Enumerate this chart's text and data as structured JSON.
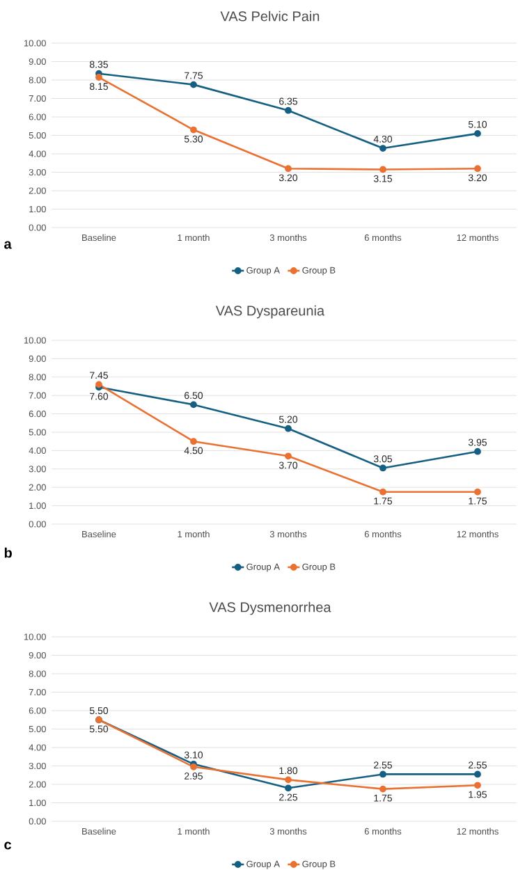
{
  "chart_data": [
    {
      "type": "line",
      "title": "VAS Pelvic Pain",
      "categories": [
        "Baseline",
        "1 month",
        "3 months",
        "6 months",
        "12 months"
      ],
      "series": [
        {
          "name": "Group A",
          "color": "#156082",
          "values": [
            8.35,
            7.75,
            6.35,
            4.3,
            5.1
          ],
          "value_labels": [
            "8.35",
            "7.75",
            "6.35",
            "4.30",
            "5.10"
          ]
        },
        {
          "name": "Group B",
          "color": "#E97132",
          "values": [
            8.15,
            5.3,
            3.2,
            3.15,
            3.2
          ],
          "value_labels": [
            "8.15",
            "5.30",
            "3.20",
            "3.15",
            "3.20"
          ]
        }
      ],
      "ylim": [
        0,
        10
      ],
      "yticks": [
        {
          "value": 0,
          "label": "0.00"
        },
        {
          "value": 1,
          "label": "1.00"
        },
        {
          "value": 2,
          "label": "2.00"
        },
        {
          "value": 3,
          "label": "3.00"
        },
        {
          "value": 4,
          "label": "4.00"
        },
        {
          "value": 5,
          "label": "5.00"
        },
        {
          "value": 6,
          "label": "6.00"
        },
        {
          "value": 7,
          "label": "7.00"
        },
        {
          "value": 8,
          "label": "8.00"
        },
        {
          "value": 9,
          "label": "9.00"
        },
        {
          "value": 10,
          "label": "10.00"
        }
      ],
      "grid": "y",
      "legend": "bottom",
      "marker": "circle",
      "annotations": [
        "a"
      ]
    },
    {
      "type": "line",
      "title": "VAS Dyspareunia",
      "categories": [
        "Baseline",
        "1 month",
        "3 months",
        "6 months",
        "12 months"
      ],
      "series": [
        {
          "name": "Group A",
          "color": "#156082",
          "values": [
            7.45,
            6.5,
            5.2,
            3.05,
            3.95
          ],
          "value_labels": [
            "7.45",
            "6.50",
            "5.20",
            "3.05",
            "3.95"
          ]
        },
        {
          "name": "Group B",
          "color": "#E97132",
          "values": [
            7.6,
            4.5,
            3.7,
            1.75,
            1.75
          ],
          "value_labels": [
            "7.60",
            "4.50",
            "3.70",
            "1.75",
            "1.75"
          ]
        }
      ],
      "ylim": [
        0,
        10
      ],
      "yticks": [
        {
          "value": 0,
          "label": "0.00"
        },
        {
          "value": 1,
          "label": "1.00"
        },
        {
          "value": 2,
          "label": "2.00"
        },
        {
          "value": 3,
          "label": "3.00"
        },
        {
          "value": 4,
          "label": "4.00"
        },
        {
          "value": 5,
          "label": "5.00"
        },
        {
          "value": 6,
          "label": "6.00"
        },
        {
          "value": 7,
          "label": "7.00"
        },
        {
          "value": 8,
          "label": "8.00"
        },
        {
          "value": 9,
          "label": "9.00"
        },
        {
          "value": 10,
          "label": "10.00"
        }
      ],
      "grid": "y",
      "legend": "bottom",
      "marker": "circle",
      "annotations": [
        "b"
      ]
    },
    {
      "type": "line",
      "title": "VAS Dysmenorrhea",
      "categories": [
        "Baseline",
        "1 month",
        "3 months",
        "6 months",
        "12 months"
      ],
      "series": [
        {
          "name": "Group A",
          "color": "#156082",
          "values": [
            5.5,
            3.1,
            1.8,
            2.55,
            2.55
          ],
          "value_labels": [
            "5.50",
            "3.10",
            "1.80",
            "2.55",
            "2.55"
          ]
        },
        {
          "name": "Group B",
          "color": "#E97132",
          "values": [
            5.5,
            2.95,
            2.25,
            1.75,
            1.95
          ],
          "value_labels": [
            "5.50",
            "2.95",
            "2.25",
            "1.75",
            "1.95"
          ]
        }
      ],
      "ylim": [
        0,
        10
      ],
      "yticks": [
        {
          "value": 0,
          "label": "0.00"
        },
        {
          "value": 1,
          "label": "1.00"
        },
        {
          "value": 2,
          "label": "2.00"
        },
        {
          "value": 3,
          "label": "3.00"
        },
        {
          "value": 4,
          "label": "4.00"
        },
        {
          "value": 5,
          "label": "5.00"
        },
        {
          "value": 6,
          "label": "6.00"
        },
        {
          "value": 7,
          "label": "7.00"
        },
        {
          "value": 8,
          "label": "8.00"
        },
        {
          "value": 9,
          "label": "9.00"
        },
        {
          "value": 10,
          "label": "10.00"
        }
      ],
      "grid": "y",
      "legend": "bottom",
      "marker": "circle",
      "annotations": [
        "c"
      ]
    }
  ]
}
